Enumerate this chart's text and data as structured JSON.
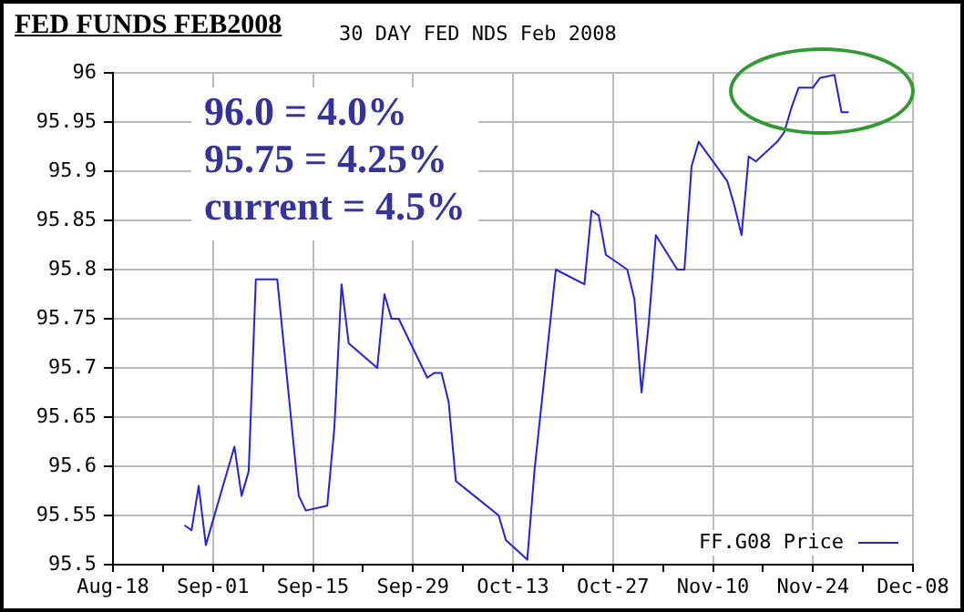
{
  "chart_data": {
    "type": "line",
    "title": "FED FUNDS FEB2008",
    "subtitle": "30 DAY FED NDS Feb 2008",
    "annotations": [
      "96.0 = 4.0%",
      "95.75 = 4.25%",
      "current = 4.5%"
    ],
    "x": [
      "--08-28",
      "--08-29",
      "--08-30",
      "--08-31",
      "--09-04",
      "--09-05",
      "--09-06",
      "--09-07",
      "--09-10",
      "--09-13",
      "--09-14",
      "--09-17",
      "--09-18",
      "--09-19",
      "--09-20",
      "--09-24",
      "--09-25",
      "--09-26",
      "--09-27",
      "--10-01",
      "--10-02",
      "--10-03",
      "--10-04",
      "--10-05",
      "--10-11",
      "--10-12",
      "--10-15",
      "--10-16",
      "--10-19",
      "--10-23",
      "--10-24",
      "--10-25",
      "--10-26",
      "--10-29",
      "--10-30",
      "--10-31",
      "--11-01",
      "--11-02",
      "--11-05",
      "--11-06",
      "--11-07",
      "--11-08",
      "--11-12",
      "--11-13",
      "--11-14",
      "--11-15",
      "--11-16",
      "--11-19",
      "--11-20",
      "--11-21",
      "--11-22",
      "--11-24",
      "--11-25",
      "--11-27",
      "--11-28",
      "--11-29"
    ],
    "series": [
      {
        "name": "FF.G08 Price",
        "color": "#2222dd",
        "values": [
          95.54,
          95.535,
          95.58,
          95.52,
          95.62,
          95.57,
          95.595,
          95.79,
          95.79,
          95.57,
          95.555,
          95.56,
          95.64,
          95.785,
          95.725,
          95.7,
          95.775,
          95.75,
          95.75,
          95.69,
          95.695,
          95.695,
          95.665,
          95.585,
          95.55,
          95.525,
          95.505,
          95.595,
          95.8,
          95.785,
          95.86,
          95.855,
          95.815,
          95.8,
          95.77,
          95.675,
          95.745,
          95.835,
          95.8,
          95.8,
          95.905,
          95.93,
          95.89,
          95.865,
          95.835,
          95.915,
          95.91,
          95.93,
          95.94,
          95.965,
          95.985,
          95.985,
          95.995,
          95.998,
          95.96,
          95.96
        ]
      }
    ],
    "xlim": [
      "--08-18",
      "--12-08"
    ],
    "xticks": [
      {
        "value": "--08-18",
        "label": "Aug-18"
      },
      {
        "value": "--08-25",
        "label": null
      },
      {
        "value": "--09-01",
        "label": "Sep-01"
      },
      {
        "value": "--09-08",
        "label": null
      },
      {
        "value": "--09-15",
        "label": "Sep-15"
      },
      {
        "value": "--09-22",
        "label": null
      },
      {
        "value": "--09-29",
        "label": "Sep-29"
      },
      {
        "value": "--10-06",
        "label": null
      },
      {
        "value": "--10-13",
        "label": "Oct-13"
      },
      {
        "value": "--10-20",
        "label": null
      },
      {
        "value": "--10-27",
        "label": "Oct-27"
      },
      {
        "value": "--11-03",
        "label": null
      },
      {
        "value": "--11-10",
        "label": "Nov-10"
      },
      {
        "value": "--11-17",
        "label": null
      },
      {
        "value": "--11-24",
        "label": "Nov-24"
      },
      {
        "value": "--12-01",
        "label": null
      },
      {
        "value": "--12-08",
        "label": "Dec-08"
      }
    ],
    "ylim": [
      95.5,
      96
    ],
    "yticks": [
      95.5,
      95.55,
      95.6,
      95.65,
      95.7,
      95.75,
      95.8,
      95.85,
      95.9,
      95.95,
      96
    ],
    "grid": true,
    "legend": "bottom right",
    "marker": "none",
    "line_style": "solid"
  }
}
